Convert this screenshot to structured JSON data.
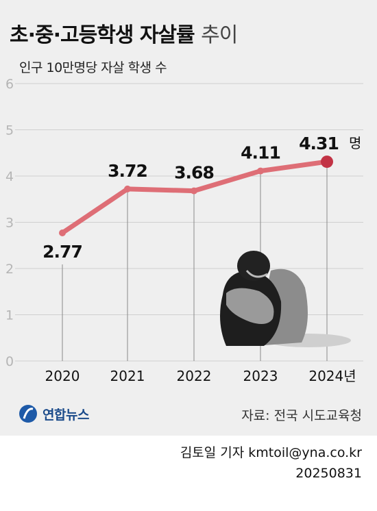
{
  "title_bold": "초·중·고등학생 자살률",
  "title_light": "추이",
  "subtitle": "인구 10만명당 자살 학생 수",
  "source": "자료: 전국 시도교육청",
  "logo_text": "연합뉴스",
  "author": "김토일 기자 kmtoil@yna.co.kr",
  "date": "20250831",
  "chart_data": {
    "type": "line",
    "categories": [
      "2020",
      "2021",
      "2022",
      "2023",
      "2024년"
    ],
    "values": [
      2.77,
      3.72,
      3.68,
      4.11,
      4.31
    ],
    "data_labels": [
      "2.77",
      "3.72",
      "3.68",
      "4.11",
      "4.31"
    ],
    "last_value_unit": "명",
    "yticks": [
      "0",
      "1",
      "2",
      "3",
      "4",
      "5",
      "6"
    ],
    "ylim": [
      0,
      6
    ],
    "line_color": "#de6e76",
    "highlight_color": "#c23345"
  }
}
